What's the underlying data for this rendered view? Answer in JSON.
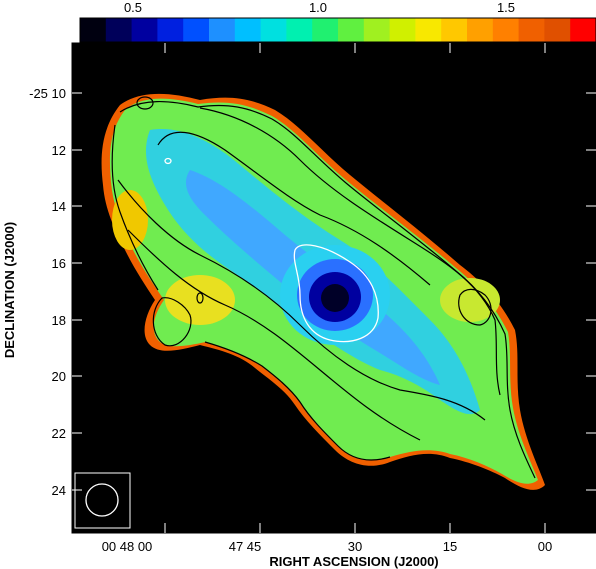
{
  "colorbar": {
    "tick_labels": [
      "0.5",
      "1.0",
      "1.5"
    ],
    "colors": [
      "#000010",
      "#00005a",
      "#0000a0",
      "#0020e0",
      "#0050ff",
      "#1e90ff",
      "#00bfff",
      "#00e0e0",
      "#00f0b0",
      "#20f070",
      "#60f040",
      "#a0f020",
      "#d0f000",
      "#f8e800",
      "#ffc800",
      "#ffa000",
      "#ff8000",
      "#f06000",
      "#e05000",
      "#ff0000"
    ]
  },
  "axes": {
    "xlabel": "RIGHT ASCENSION (J2000)",
    "ylabel": "DECLINATION (J2000)",
    "x_tick_labels": [
      "00 48 00",
      "47 45",
      "30",
      "15",
      "00"
    ],
    "y_tick_labels": [
      "-25 10",
      "12",
      "14",
      "16",
      "18",
      "20",
      "22",
      "24"
    ]
  },
  "image": {
    "background_color": "#000000",
    "beam_shape": "circle"
  }
}
